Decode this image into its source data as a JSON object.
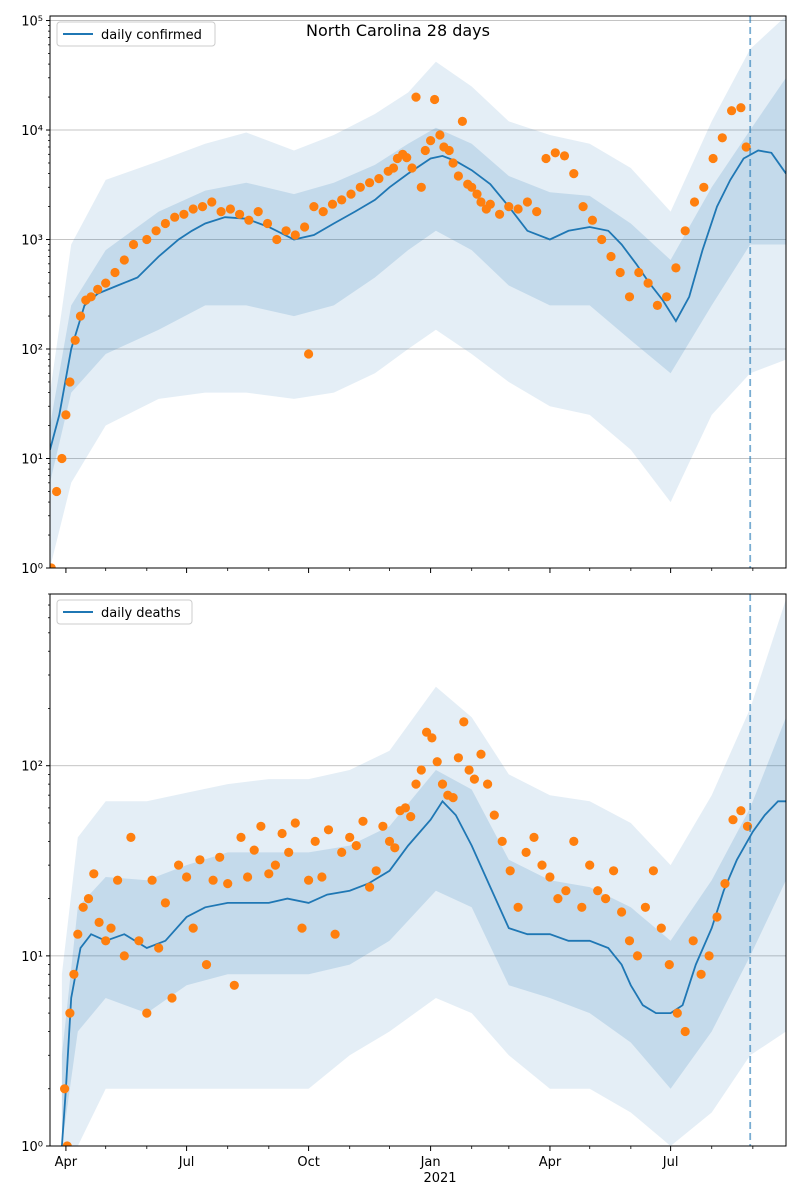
{
  "figure": {
    "title": "North Carolina 28 days",
    "date_tick_labels": [
      "Apr",
      "Jul",
      "Oct",
      "Jan",
      "Apr",
      "Jul"
    ],
    "year_label": "2021"
  },
  "colors": {
    "model_line": "#1f77b4",
    "observed_points": "#ff7f0e",
    "band": "#1f77b4",
    "grid": "#b0b0b0",
    "forecast_marker": "#1f77b4"
  },
  "chart_data": [
    {
      "type": "line",
      "panel": "top",
      "legend": "daily confirmed",
      "legend_position": "top-left",
      "y_scale": "log",
      "ylim": [
        1,
        110000
      ],
      "xlim": [
        "2020-03-20",
        "2021-09-26"
      ],
      "y_tick_labels": [
        "10⁰",
        "10¹",
        "10²",
        "10³",
        "10⁴",
        "10⁵"
      ],
      "grid": "horizontal",
      "forecast_start": "2021-08-30",
      "model_curve": {
        "x": [
          "2020-03-20",
          "2020-03-27",
          "2020-04-05",
          "2020-04-15",
          "2020-04-25",
          "2020-05-10",
          "2020-05-25",
          "2020-06-10",
          "2020-06-25",
          "2020-07-05",
          "2020-07-15",
          "2020-07-30",
          "2020-08-15",
          "2020-09-01",
          "2020-09-20",
          "2020-10-05",
          "2020-10-20",
          "2020-11-05",
          "2020-11-20",
          "2020-12-01",
          "2020-12-15",
          "2021-01-01",
          "2021-01-10",
          "2021-01-20",
          "2021-02-01",
          "2021-02-15",
          "2021-03-01",
          "2021-03-15",
          "2021-04-01",
          "2021-04-15",
          "2021-05-01",
          "2021-05-15",
          "2021-05-25",
          "2021-06-05",
          "2021-06-15",
          "2021-06-25",
          "2021-07-05",
          "2021-07-15",
          "2021-07-25",
          "2021-08-05",
          "2021-08-15",
          "2021-08-25",
          "2021-09-05",
          "2021-09-15",
          "2021-09-26"
        ],
        "y": [
          12,
          25,
          100,
          250,
          320,
          380,
          450,
          700,
          1000,
          1200,
          1400,
          1600,
          1550,
          1300,
          1000,
          1100,
          1400,
          1800,
          2300,
          3000,
          4000,
          5500,
          5800,
          5200,
          4300,
          3200,
          2000,
          1200,
          1000,
          1200,
          1300,
          1200,
          900,
          600,
          400,
          280,
          180,
          300,
          800,
          2000,
          3500,
          5500,
          6500,
          6200,
          4000
        ]
      },
      "band_inner": {
        "x": [
          "2020-03-20",
          "2020-04-05",
          "2020-05-01",
          "2020-06-10",
          "2020-07-15",
          "2020-08-15",
          "2020-09-20",
          "2020-10-20",
          "2020-11-20",
          "2020-12-15",
          "2021-01-05",
          "2021-02-01",
          "2021-03-01",
          "2021-04-01",
          "2021-05-01",
          "2021-06-01",
          "2021-07-01",
          "2021-08-01",
          "2021-08-30",
          "2021-09-26"
        ],
        "lower": [
          6,
          40,
          90,
          150,
          250,
          250,
          200,
          250,
          450,
          800,
          1200,
          800,
          380,
          250,
          250,
          120,
          60,
          250,
          900,
          900
        ],
        "upper": [
          20,
          250,
          800,
          1800,
          2800,
          3300,
          2600,
          3300,
          4800,
          7500,
          10500,
          7500,
          3800,
          2700,
          2500,
          1400,
          650,
          3000,
          10000,
          30000
        ]
      },
      "band_outer": {
        "x": [
          "2020-03-20",
          "2020-04-05",
          "2020-05-01",
          "2020-06-10",
          "2020-07-15",
          "2020-08-15",
          "2020-09-20",
          "2020-10-20",
          "2020-11-20",
          "2020-12-15",
          "2021-01-05",
          "2021-02-01",
          "2021-03-01",
          "2021-04-01",
          "2021-05-01",
          "2021-06-01",
          "2021-07-01",
          "2021-08-01",
          "2021-08-30",
          "2021-09-26"
        ],
        "lower": [
          1,
          6,
          20,
          35,
          40,
          40,
          35,
          40,
          60,
          100,
          150,
          90,
          50,
          30,
          25,
          12,
          4,
          25,
          60,
          80
        ],
        "upper": [
          40,
          900,
          3500,
          5200,
          7500,
          9500,
          6500,
          9000,
          14000,
          22000,
          42000,
          25000,
          12000,
          9000,
          7500,
          4500,
          1800,
          12000,
          55000,
          110000
        ]
      },
      "observed": {
        "x": [
          "2020-03-21",
          "2020-03-25",
          "2020-03-29",
          "2020-04-01",
          "2020-04-04",
          "2020-04-08",
          "2020-04-12",
          "2020-04-16",
          "2020-04-20",
          "2020-04-25",
          "2020-05-01",
          "2020-05-08",
          "2020-05-15",
          "2020-05-22",
          "2020-06-01",
          "2020-06-08",
          "2020-06-15",
          "2020-06-22",
          "2020-06-29",
          "2020-07-06",
          "2020-07-13",
          "2020-07-20",
          "2020-07-27",
          "2020-08-03",
          "2020-08-10",
          "2020-08-17",
          "2020-08-24",
          "2020-08-31",
          "2020-09-07",
          "2020-09-14",
          "2020-09-21",
          "2020-09-28",
          "2020-10-01",
          "2020-10-05",
          "2020-10-12",
          "2020-10-19",
          "2020-10-26",
          "2020-11-02",
          "2020-11-09",
          "2020-11-16",
          "2020-11-23",
          "2020-11-30",
          "2020-12-04",
          "2020-12-07",
          "2020-12-11",
          "2020-12-14",
          "2020-12-18",
          "2020-12-21",
          "2020-12-25",
          "2020-12-28",
          "2021-01-01",
          "2021-01-04",
          "2021-01-08",
          "2021-01-11",
          "2021-01-15",
          "2021-01-18",
          "2021-01-22",
          "2021-01-25",
          "2021-01-29",
          "2021-02-01",
          "2021-02-05",
          "2021-02-08",
          "2021-02-12",
          "2021-02-15",
          "2021-02-22",
          "2021-03-01",
          "2021-03-08",
          "2021-03-15",
          "2021-03-22",
          "2021-03-29",
          "2021-04-05",
          "2021-04-12",
          "2021-04-19",
          "2021-04-26",
          "2021-05-03",
          "2021-05-10",
          "2021-05-17",
          "2021-05-24",
          "2021-05-31",
          "2021-06-07",
          "2021-06-14",
          "2021-06-21",
          "2021-06-28",
          "2021-07-05",
          "2021-07-12",
          "2021-07-19",
          "2021-07-26",
          "2021-08-02",
          "2021-08-09",
          "2021-08-16",
          "2021-08-23",
          "2021-08-27"
        ],
        "y": [
          1,
          5,
          10,
          25,
          50,
          120,
          200,
          280,
          300,
          350,
          400,
          500,
          650,
          900,
          1000,
          1200,
          1400,
          1600,
          1700,
          1900,
          2000,
          2200,
          1800,
          1900,
          1700,
          1500,
          1800,
          1400,
          1000,
          1200,
          1100,
          1300,
          90,
          2000,
          1800,
          2100,
          2300,
          2600,
          3000,
          3300,
          3600,
          4200,
          4500,
          5500,
          6000,
          5600,
          4500,
          20000,
          3000,
          6500,
          8000,
          19000,
          9000,
          7000,
          6500,
          5000,
          3800,
          12000,
          3200,
          3000,
          2600,
          2200,
          1900,
          2100,
          1700,
          2000,
          1900,
          2200,
          1800,
          5500,
          6200,
          5800,
          4000,
          2000,
          1500,
          1000,
          700,
          500,
          300,
          500,
          400,
          250,
          300,
          550,
          1200,
          2200,
          3000,
          5500,
          8500,
          15000,
          16000,
          7000
        ]
      }
    },
    {
      "type": "line",
      "panel": "bottom",
      "legend": "daily deaths",
      "legend_position": "top-left",
      "y_scale": "log",
      "ylim": [
        1,
        800
      ],
      "xlim": [
        "2020-03-20",
        "2021-09-26"
      ],
      "y_tick_labels": [
        "10⁰",
        "10¹",
        "10²"
      ],
      "x_tick_labels": [
        "Apr",
        "Jul",
        "Oct",
        "Jan",
        "Apr",
        "Jul"
      ],
      "x_year_label": "2021",
      "grid": "horizontal",
      "forecast_start": "2021-08-30",
      "model_curve": {
        "x": [
          "2020-03-29",
          "2020-04-01",
          "2020-04-05",
          "2020-04-12",
          "2020-04-20",
          "2020-05-01",
          "2020-05-15",
          "2020-06-01",
          "2020-06-15",
          "2020-07-01",
          "2020-07-15",
          "2020-08-01",
          "2020-08-15",
          "2020-09-01",
          "2020-09-15",
          "2020-10-01",
          "2020-10-15",
          "2020-11-01",
          "2020-11-15",
          "2020-12-01",
          "2020-12-15",
          "2021-01-01",
          "2021-01-10",
          "2021-01-20",
          "2021-02-01",
          "2021-02-15",
          "2021-03-01",
          "2021-03-15",
          "2021-04-01",
          "2021-04-15",
          "2021-05-01",
          "2021-05-15",
          "2021-05-25",
          "2021-06-01",
          "2021-06-10",
          "2021-06-20",
          "2021-07-01",
          "2021-07-10",
          "2021-07-20",
          "2021-08-01",
          "2021-08-10",
          "2021-08-20",
          "2021-09-01",
          "2021-09-10",
          "2021-09-20",
          "2021-09-26"
        ],
        "y": [
          1,
          2,
          6,
          11,
          13,
          12,
          13,
          11,
          12,
          16,
          18,
          19,
          19,
          19,
          20,
          19,
          21,
          22,
          24,
          28,
          38,
          52,
          65,
          55,
          38,
          23,
          14,
          13,
          13,
          12,
          12,
          11,
          9,
          7,
          5.5,
          5,
          5,
          5.5,
          9,
          14,
          22,
          32,
          45,
          55,
          65,
          65
        ]
      },
      "band_inner": {
        "x": [
          "2020-03-29",
          "2020-04-10",
          "2020-05-01",
          "2020-06-01",
          "2020-07-01",
          "2020-08-01",
          "2020-09-01",
          "2020-10-01",
          "2020-11-01",
          "2020-12-01",
          "2021-01-05",
          "2021-02-01",
          "2021-03-01",
          "2021-04-01",
          "2021-05-01",
          "2021-06-01",
          "2021-07-01",
          "2021-08-01",
          "2021-08-30",
          "2021-09-26"
        ],
        "lower": [
          1,
          4,
          6,
          5,
          7,
          8,
          8,
          8,
          9,
          12,
          22,
          18,
          7,
          6,
          5,
          3.5,
          2,
          4,
          10,
          25
        ],
        "upper": [
          3,
          18,
          26,
          25,
          30,
          35,
          35,
          35,
          38,
          48,
          95,
          75,
          32,
          25,
          23,
          18,
          12,
          25,
          60,
          180
        ]
      },
      "band_outer": {
        "x": [
          "2020-03-29",
          "2020-04-10",
          "2020-05-01",
          "2020-06-01",
          "2020-07-01",
          "2020-08-01",
          "2020-09-01",
          "2020-10-01",
          "2020-11-01",
          "2020-12-01",
          "2021-01-05",
          "2021-02-01",
          "2021-03-01",
          "2021-04-01",
          "2021-05-01",
          "2021-06-01",
          "2021-07-01",
          "2021-08-01",
          "2021-08-30",
          "2021-09-26"
        ],
        "lower": [
          1,
          1,
          2,
          2,
          2,
          2,
          2,
          2,
          3,
          4,
          6,
          5,
          3,
          2,
          2,
          1.5,
          1,
          1.5,
          3,
          4
        ],
        "upper": [
          8,
          42,
          65,
          65,
          72,
          80,
          85,
          85,
          95,
          120,
          260,
          180,
          90,
          70,
          65,
          50,
          30,
          70,
          200,
          750
        ]
      },
      "observed": {
        "x": [
          "2020-03-31",
          "2020-04-02",
          "2020-04-04",
          "2020-04-07",
          "2020-04-10",
          "2020-04-14",
          "2020-04-18",
          "2020-04-22",
          "2020-04-26",
          "2020-05-01",
          "2020-05-05",
          "2020-05-10",
          "2020-05-15",
          "2020-05-20",
          "2020-05-26",
          "2020-06-01",
          "2020-06-05",
          "2020-06-10",
          "2020-06-15",
          "2020-06-20",
          "2020-06-25",
          "2020-07-01",
          "2020-07-06",
          "2020-07-11",
          "2020-07-16",
          "2020-07-21",
          "2020-07-26",
          "2020-08-01",
          "2020-08-06",
          "2020-08-11",
          "2020-08-16",
          "2020-08-21",
          "2020-08-26",
          "2020-09-01",
          "2020-09-06",
          "2020-09-11",
          "2020-09-16",
          "2020-09-21",
          "2020-09-26",
          "2020-10-01",
          "2020-10-06",
          "2020-10-11",
          "2020-10-16",
          "2020-10-21",
          "2020-10-26",
          "2020-11-01",
          "2020-11-06",
          "2020-11-11",
          "2020-11-16",
          "2020-11-21",
          "2020-11-26",
          "2020-12-01",
          "2020-12-05",
          "2020-12-09",
          "2020-12-13",
          "2020-12-17",
          "2020-12-21",
          "2020-12-25",
          "2020-12-29",
          "2021-01-02",
          "2021-01-06",
          "2021-01-10",
          "2021-01-14",
          "2021-01-18",
          "2021-01-22",
          "2021-01-26",
          "2021-01-30",
          "2021-02-03",
          "2021-02-08",
          "2021-02-13",
          "2021-02-18",
          "2021-02-24",
          "2021-03-02",
          "2021-03-08",
          "2021-03-14",
          "2021-03-20",
          "2021-03-26",
          "2021-04-01",
          "2021-04-07",
          "2021-04-13",
          "2021-04-19",
          "2021-04-25",
          "2021-05-01",
          "2021-05-07",
          "2021-05-13",
          "2021-05-19",
          "2021-05-25",
          "2021-05-31",
          "2021-06-06",
          "2021-06-12",
          "2021-06-18",
          "2021-06-24",
          "2021-06-30",
          "2021-07-06",
          "2021-07-12",
          "2021-07-18",
          "2021-07-24",
          "2021-07-30",
          "2021-08-05",
          "2021-08-11",
          "2021-08-17",
          "2021-08-23",
          "2021-08-28"
        ],
        "y": [
          2,
          1,
          5,
          8,
          13,
          18,
          20,
          27,
          15,
          12,
          14,
          25,
          10,
          42,
          12,
          5,
          25,
          11,
          19,
          6,
          30,
          26,
          14,
          32,
          9,
          25,
          33,
          24,
          7,
          42,
          26,
          36,
          48,
          27,
          30,
          44,
          35,
          50,
          14,
          25,
          40,
          26,
          46,
          13,
          35,
          42,
          38,
          51,
          23,
          28,
          48,
          40,
          37,
          58,
          60,
          54,
          80,
          95,
          150,
          140,
          105,
          80,
          70,
          68,
          110,
          170,
          95,
          85,
          115,
          80,
          55,
          40,
          28,
          18,
          35,
          42,
          30,
          26,
          20,
          22,
          40,
          18,
          30,
          22,
          20,
          28,
          17,
          12,
          10,
          18,
          28,
          14,
          9,
          5,
          4,
          12,
          8,
          10,
          16,
          24,
          52,
          58,
          48
        ]
      }
    }
  ]
}
